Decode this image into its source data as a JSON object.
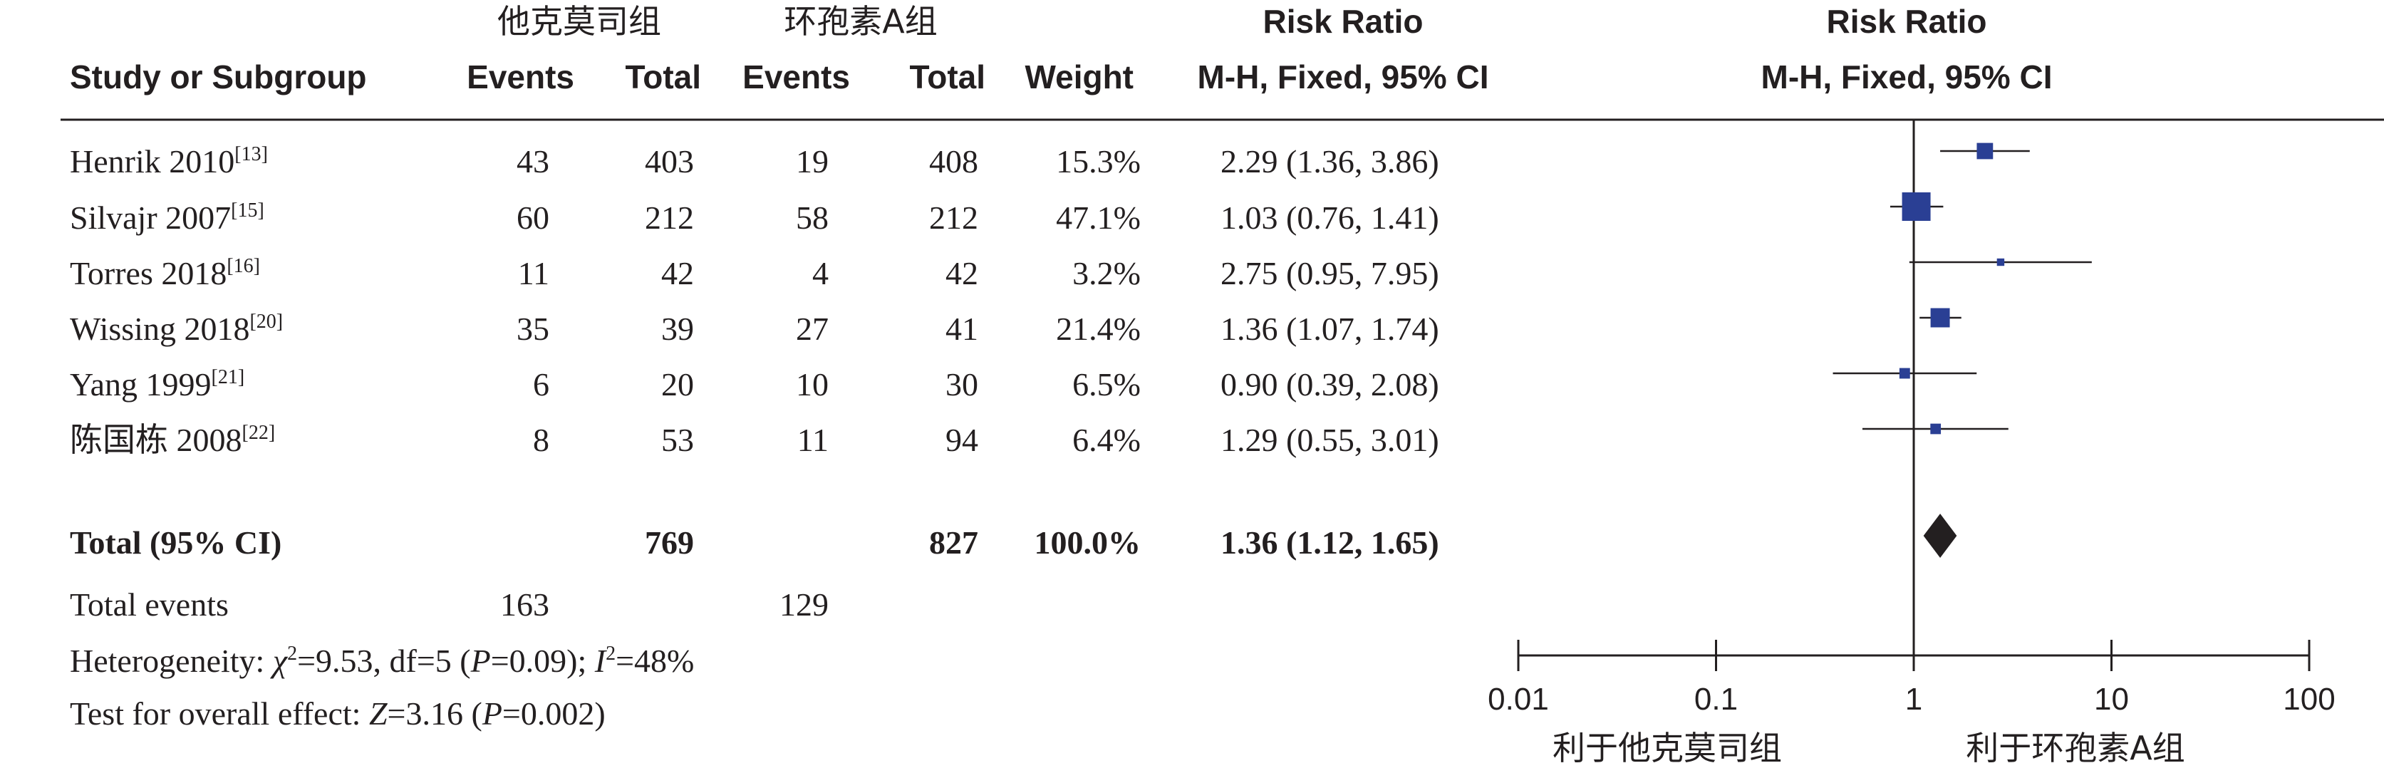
{
  "header": {
    "group1": "他克莫司组",
    "group2": "环孢素A组",
    "risk_ratio_col": "Risk Ratio",
    "risk_ratio_plot": "Risk Ratio",
    "study_col": "Study or Subgroup",
    "events1": "Events",
    "total1": "Total",
    "events2": "Events",
    "total2": "Total",
    "weight": "Weight",
    "method_col": "M-H, Fixed, 95% CI",
    "method_plot": "M-H, Fixed, 95% CI"
  },
  "studies": [
    {
      "name": "Henrik 2010",
      "ref": "[13]",
      "events1": "43",
      "total1": "403",
      "events2": "19",
      "total2": "408",
      "weight": "15.3%",
      "ci_text": "2.29 (1.36, 3.86)"
    },
    {
      "name": "Silvajr 2007",
      "ref": "[15]",
      "events1": "60",
      "total1": "212",
      "events2": "58",
      "total2": "212",
      "weight": "47.1%",
      "ci_text": "1.03 (0.76, 1.41)"
    },
    {
      "name": "Torres 2018",
      "ref": "[16]",
      "events1": "11",
      "total1": "42",
      "events2": "4",
      "total2": "42",
      "weight": "3.2%",
      "ci_text": "2.75 (0.95, 7.95)"
    },
    {
      "name": "Wissing 2018",
      "ref": "[20]",
      "events1": "35",
      "total1": "39",
      "events2": "27",
      "total2": "41",
      "weight": "21.4%",
      "ci_text": "1.36 (1.07, 1.74)"
    },
    {
      "name": "Yang 1999",
      "ref": "[21]",
      "events1": "6",
      "total1": "20",
      "events2": "10",
      "total2": "30",
      "weight": "6.5%",
      "ci_text": "0.90 (0.39, 2.08)"
    },
    {
      "name": "陈国栋 2008",
      "ref": "[22]",
      "events1": "8",
      "total1": "53",
      "events2": "11",
      "total2": "94",
      "weight": "6.4%",
      "ci_text": "1.29 (0.55, 3.01)"
    }
  ],
  "total": {
    "label": "Total (95% CI)",
    "total1": "769",
    "total2": "827",
    "weight": "100.0%",
    "ci_text": "1.36 (1.12, 1.65)"
  },
  "total_events": {
    "label": "Total events",
    "events1": "163",
    "events2": "129"
  },
  "heterogeneity": {
    "prefix": "Heterogeneity: ",
    "chi_symbol": "χ",
    "chi_sup": "2",
    "chi_value": "=9.53, df=5 (",
    "p_symbol": "P",
    "p_value": "=0.09); ",
    "i_symbol": "I",
    "i_sup": "2",
    "i_value": "=48%"
  },
  "overall_effect": {
    "prefix": "Test for overall effect: ",
    "z_symbol": "Z",
    "z_value": "=3.16 (",
    "p_symbol": "P",
    "p_value": "=0.002)"
  },
  "colors": {
    "marker": "#2a3f94",
    "diamond": "#231f20",
    "text": "#231f20"
  },
  "chart_data": {
    "type": "forest",
    "x_scale": "log",
    "xlim": [
      0.01,
      100
    ],
    "x_ticks": [
      0.01,
      0.1,
      1,
      10,
      100
    ],
    "x_tick_labels": [
      "0.01",
      "0.1",
      "1",
      "10",
      "100"
    ],
    "favours_left": "利于他克莫司组",
    "favours_right": "利于环孢素A组",
    "series": [
      {
        "study": "Henrik 2010",
        "rr": 2.29,
        "lower": 1.36,
        "upper": 3.86,
        "weight": 15.3
      },
      {
        "study": "Silvajr 2007",
        "rr": 1.03,
        "lower": 0.76,
        "upper": 1.41,
        "weight": 47.1
      },
      {
        "study": "Torres 2018",
        "rr": 2.75,
        "lower": 0.95,
        "upper": 7.95,
        "weight": 3.2
      },
      {
        "study": "Wissing 2018",
        "rr": 1.36,
        "lower": 1.07,
        "upper": 1.74,
        "weight": 21.4
      },
      {
        "study": "Yang 1999",
        "rr": 0.9,
        "lower": 0.39,
        "upper": 2.08,
        "weight": 6.5
      },
      {
        "study": "陈国栋 2008",
        "rr": 1.29,
        "lower": 0.55,
        "upper": 3.01,
        "weight": 6.4
      }
    ],
    "pooled": {
      "rr": 1.36,
      "lower": 1.12,
      "upper": 1.65
    }
  }
}
